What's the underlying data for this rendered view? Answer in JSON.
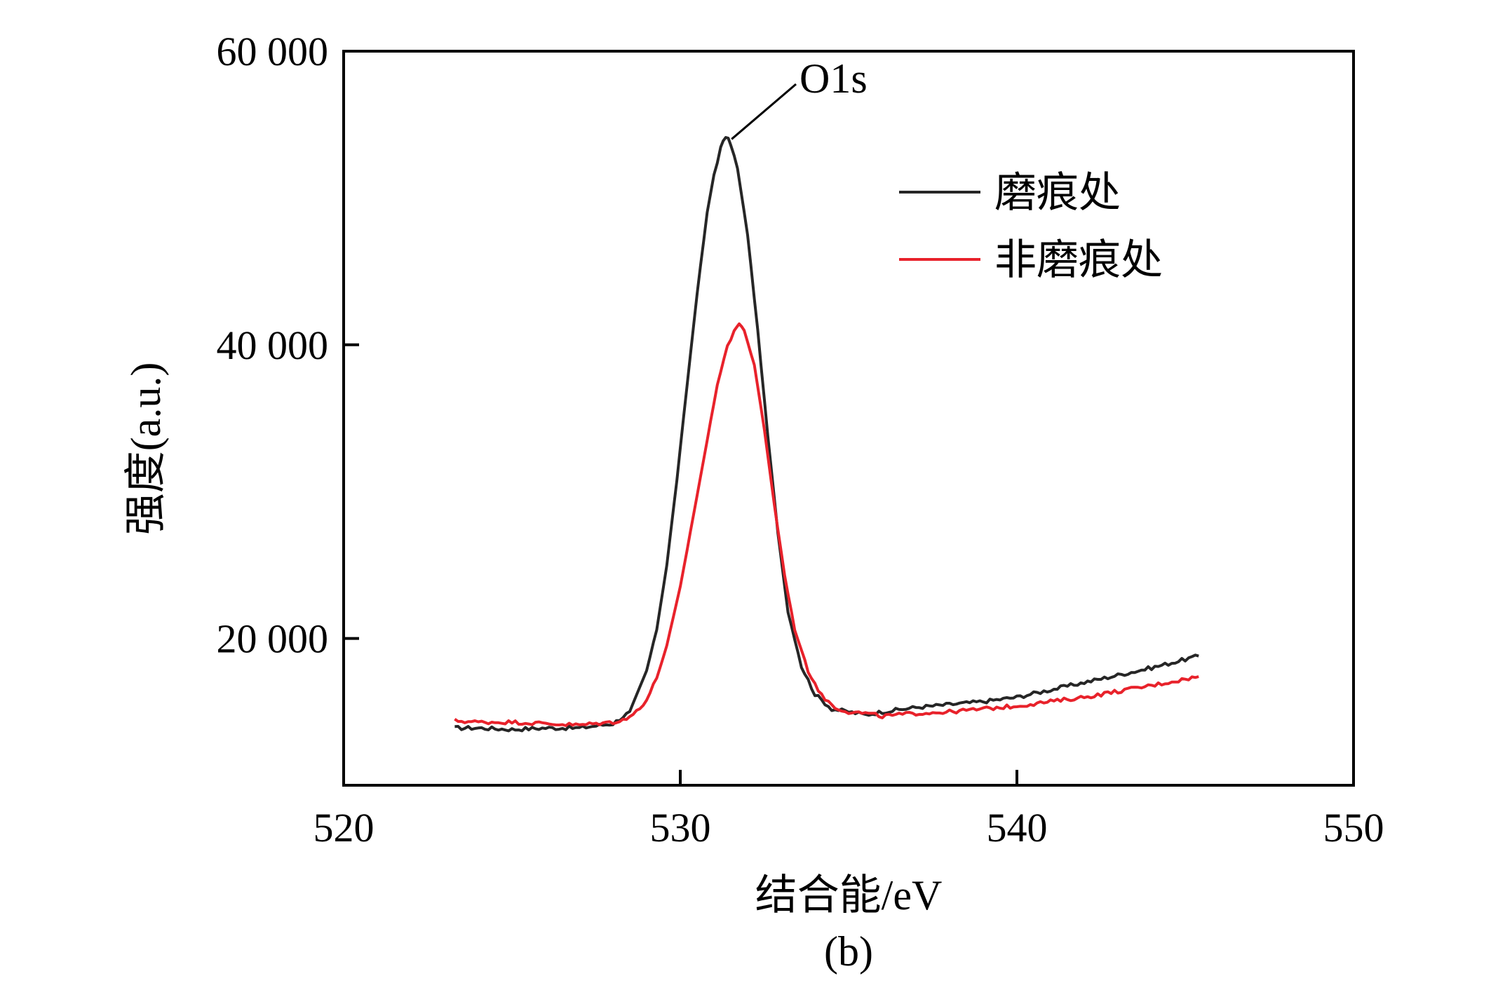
{
  "chart_data": {
    "type": "line",
    "title": "",
    "xlabel": "结合能/eV",
    "ylabel": "强度(a.u.)",
    "xlim": [
      520,
      550
    ],
    "ylim": [
      10000,
      60000
    ],
    "x_ticks": [
      520,
      530,
      540,
      550
    ],
    "x_tick_labels": [
      "520",
      "530",
      "540",
      "550"
    ],
    "y_ticks": [
      20000,
      40000,
      60000
    ],
    "y_tick_labels": [
      "20 000",
      "40 000",
      "60 000"
    ],
    "grid": false,
    "legend_position": "top-right",
    "annotation": {
      "text": "O1s",
      "x": 531.4,
      "y": 54200
    },
    "panel_label": "(b)",
    "series": [
      {
        "name": "磨痕处",
        "color": "#262626",
        "x": [
          523.3,
          524.0,
          525.0,
          526.0,
          527.0,
          528.0,
          528.5,
          529.0,
          529.3,
          529.6,
          529.9,
          530.2,
          530.5,
          530.8,
          531.0,
          531.2,
          531.35,
          531.5,
          531.7,
          532.0,
          532.3,
          532.6,
          532.9,
          533.2,
          533.6,
          534.0,
          534.5,
          535.0,
          535.5,
          536.0,
          537.0,
          538.0,
          539.0,
          540.0,
          541.0,
          542.0,
          543.0,
          544.0,
          545.4
        ],
        "y": [
          13900,
          13900,
          13800,
          13900,
          13900,
          14200,
          15000,
          17800,
          20600,
          25000,
          30800,
          37200,
          43500,
          49000,
          51600,
          53400,
          54200,
          53700,
          52000,
          47500,
          41000,
          33800,
          27200,
          21800,
          18100,
          16200,
          15200,
          15000,
          14800,
          15000,
          15300,
          15500,
          15700,
          16000,
          16500,
          17000,
          17500,
          18000,
          18800
        ]
      },
      {
        "name": "非磨痕处",
        "color": "#e8222b",
        "x": [
          523.3,
          524.0,
          525.0,
          526.0,
          527.0,
          528.0,
          528.5,
          529.0,
          529.3,
          529.6,
          530.0,
          530.4,
          530.8,
          531.1,
          531.4,
          531.6,
          531.75,
          531.9,
          532.2,
          532.5,
          532.8,
          533.1,
          533.4,
          533.8,
          534.2,
          534.6,
          535.0,
          535.5,
          536.0,
          537.0,
          538.0,
          539.0,
          540.0,
          541.0,
          542.0,
          543.0,
          544.0,
          545.4
        ],
        "y": [
          14400,
          14300,
          14300,
          14200,
          14100,
          14300,
          14600,
          15800,
          17300,
          19500,
          23500,
          28500,
          33500,
          37300,
          39900,
          41000,
          41400,
          41000,
          38600,
          34200,
          29000,
          24300,
          20600,
          17800,
          16100,
          15300,
          15000,
          14900,
          14700,
          14900,
          15000,
          15200,
          15400,
          15700,
          16000,
          16400,
          16800,
          17400
        ]
      }
    ]
  }
}
